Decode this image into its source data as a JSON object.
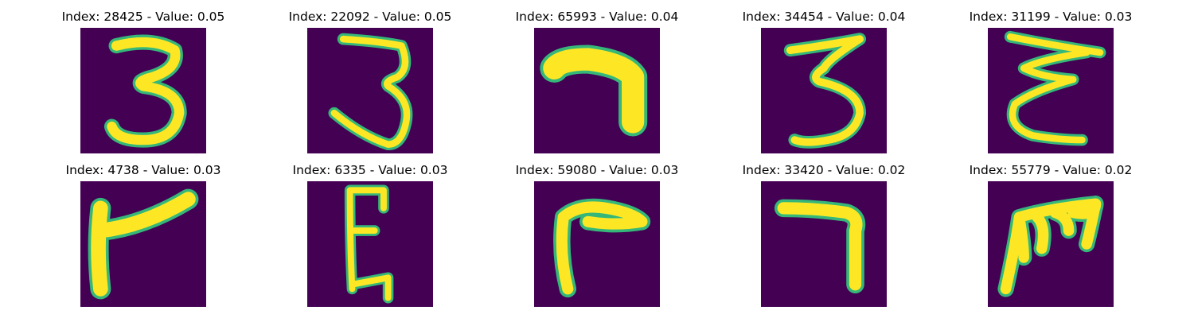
{
  "colors": {
    "background": "#440154",
    "stroke_core": "#fde725",
    "stroke_edge": "#35b779",
    "stroke_mid": "#21908d"
  },
  "panels": [
    {
      "title": "Index: 28425 - Value: 0.05",
      "index": 28425,
      "value": 0.05,
      "glyph": "digit-3"
    },
    {
      "title": "Index: 22092 - Value: 0.05",
      "index": 22092,
      "value": 0.05,
      "glyph": "digit-3"
    },
    {
      "title": "Index: 65993 - Value: 0.04",
      "index": 65993,
      "value": 0.04,
      "glyph": "digit-7"
    },
    {
      "title": "Index: 34454 - Value: 0.04",
      "index": 34454,
      "value": 0.04,
      "glyph": "digit-3"
    },
    {
      "title": "Index: 31199 - Value: 0.03",
      "index": 31199,
      "value": 0.03,
      "glyph": "letter-e"
    },
    {
      "title": "Index: 4738 - Value: 0.03",
      "index": 4738,
      "value": 0.03,
      "glyph": "digit-7-rotated"
    },
    {
      "title": "Index: 6335 - Value: 0.03",
      "index": 6335,
      "value": 0.03,
      "glyph": "letter-e"
    },
    {
      "title": "Index: 59080 - Value: 0.03",
      "index": 59080,
      "value": 0.03,
      "glyph": "digit-7-rotated"
    },
    {
      "title": "Index: 33420 - Value: 0.02",
      "index": 33420,
      "value": 0.02,
      "glyph": "digit-7"
    },
    {
      "title": "Index: 55779 - Value: 0.02",
      "index": 55779,
      "value": 0.02,
      "glyph": "letter-m"
    }
  ]
}
